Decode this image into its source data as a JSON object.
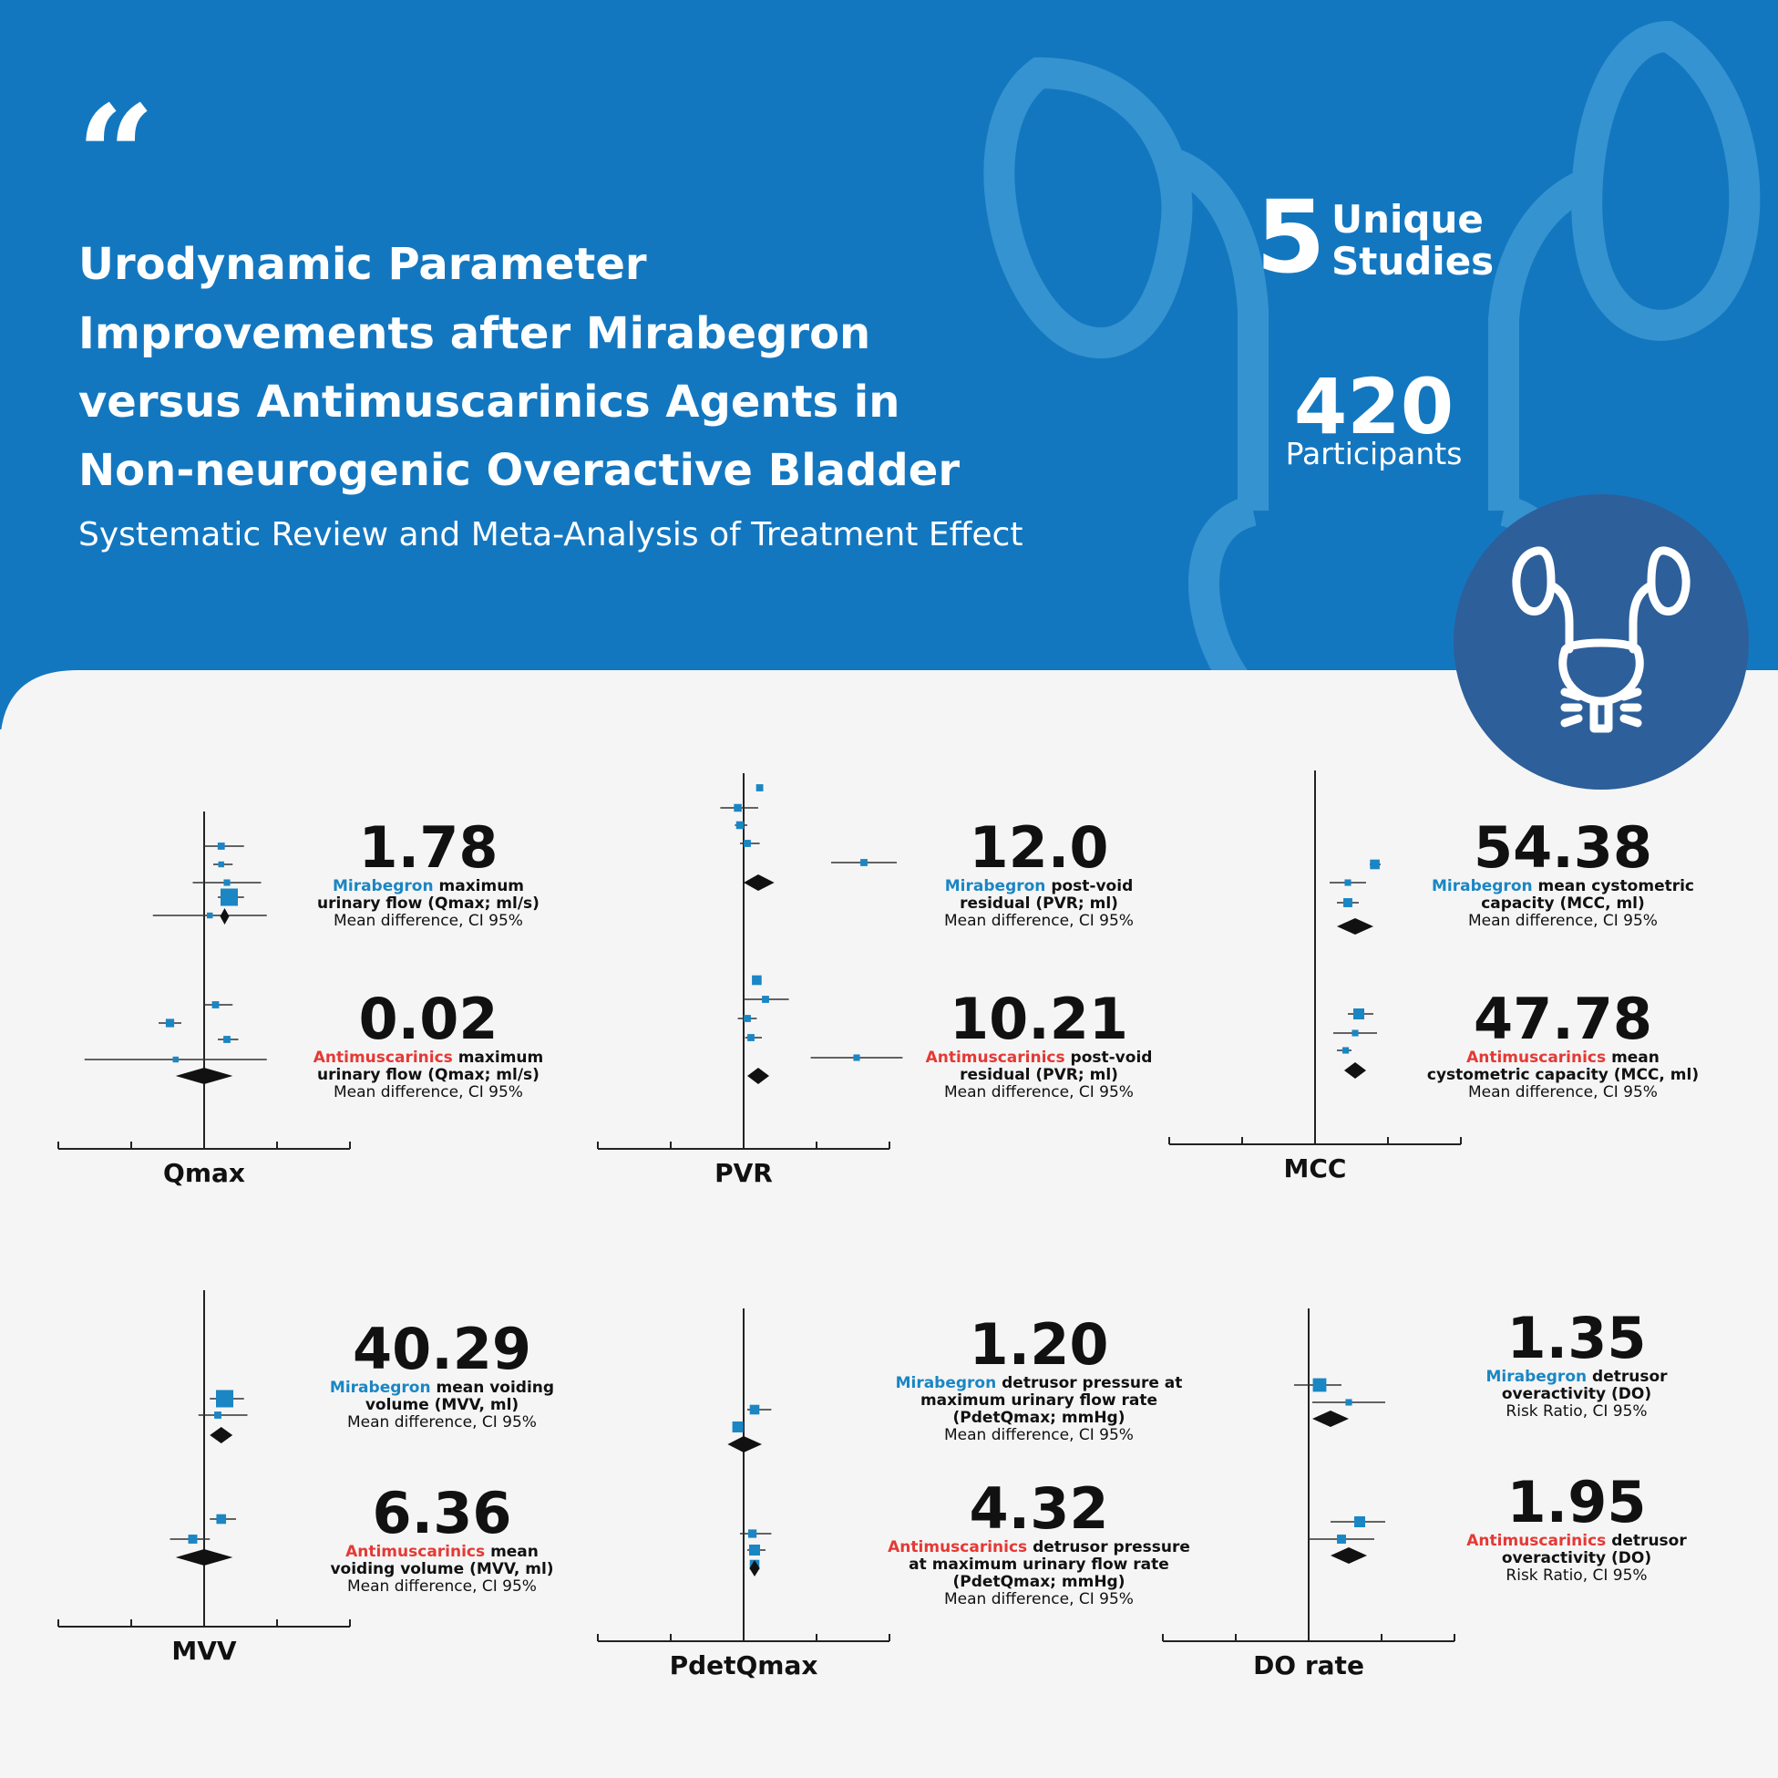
{
  "header": {
    "title_lines": [
      "Urodynamic Parameter",
      "Improvements after Mirabegron",
      "versus Antimuscarinics Agents in",
      "Non-neurogenic Overactive Bladder"
    ],
    "subtitle": "Systematic Review and Meta-Analysis of Treatment Effect",
    "quote_mark": "“"
  },
  "stats": {
    "studies_count": "5",
    "studies_label_l1": "Unique",
    "studies_label_l2": "Studies",
    "participants_count": "420",
    "participants_label": "Participants"
  },
  "icons": {
    "badge": "kidneys-bladder-icon",
    "background": "urinary-tract-outline-icon"
  },
  "colors": {
    "header_blue": "#1377c0",
    "badge_blue": "#2d5f9a",
    "mirabegron": "#1a86c4",
    "antimuscarinics": "#e53935",
    "marker": "#1a86c4"
  },
  "chart_data": [
    {
      "type": "forest",
      "axis_label": "Qmax",
      "groups": [
        {
          "drug": "Mirabegron",
          "estimate": "1.78",
          "description": "maximum urinary flow (Qmax; ml/s)",
          "measure": "Mean difference, CI 95%",
          "studies": [
            {
              "est": 0.15,
              "lo": 0.0,
              "hi": 0.35,
              "w": 0.2
            },
            {
              "est": 0.15,
              "lo": 0.08,
              "hi": 0.25,
              "w": 0.1
            },
            {
              "est": 0.2,
              "lo": -0.1,
              "hi": 0.5,
              "w": 0.15
            },
            {
              "est": 0.22,
              "lo": 0.12,
              "hi": 0.35,
              "w": 1.0
            },
            {
              "est": 0.05,
              "lo": -0.45,
              "hi": 0.55,
              "w": 0.1
            }
          ],
          "pooled": {
            "est": 0.18,
            "lo": 0.14,
            "hi": 0.22
          }
        },
        {
          "drug": "Antimuscarinics",
          "estimate": "0.02",
          "description": "maximum urinary flow (Qmax; ml/s)",
          "measure": "Mean difference, CI 95%",
          "studies": [
            {
              "est": 0.1,
              "lo": 0.0,
              "hi": 0.25,
              "w": 0.2
            },
            {
              "est": -0.3,
              "lo": -0.4,
              "hi": -0.2,
              "w": 0.3
            },
            {
              "est": 0.2,
              "lo": 0.12,
              "hi": 0.3,
              "w": 0.2
            },
            {
              "est": -0.25,
              "lo": -1.05,
              "hi": 0.55,
              "w": 0.1
            }
          ],
          "pooled": {
            "est": 0.0,
            "lo": -0.25,
            "hi": 0.25
          }
        }
      ]
    },
    {
      "type": "forest",
      "axis_label": "PVR",
      "groups": [
        {
          "drug": "Mirabegron",
          "estimate": "12.0",
          "description": "post-void residual (PVR; ml)",
          "measure": "Mean difference, CI 95%",
          "studies": [
            {
              "est": 0.22,
              "lo": 0.22,
              "hi": 0.22,
              "w": 0.2
            },
            {
              "est": -0.08,
              "lo": -0.32,
              "hi": 0.2,
              "w": 0.25
            },
            {
              "est": -0.05,
              "lo": -0.12,
              "hi": 0.05,
              "w": 0.25
            },
            {
              "est": 0.05,
              "lo": -0.05,
              "hi": 0.22,
              "w": 0.2
            },
            {
              "est": 1.65,
              "lo": 1.2,
              "hi": 2.1,
              "w": 0.2
            }
          ],
          "pooled": {
            "est": 0.2,
            "lo": 0.0,
            "hi": 0.42
          }
        },
        {
          "drug": "Antimuscarinics",
          "estimate": "10.21",
          "description": "post-void residual (PVR; ml)",
          "measure": "Mean difference, CI 95%",
          "studies": [
            {
              "est": 0.18,
              "lo": 0.18,
              "hi": 0.18,
              "w": 0.4
            },
            {
              "est": 0.3,
              "lo": 0.0,
              "hi": 0.62,
              "w": 0.2
            },
            {
              "est": 0.05,
              "lo": -0.08,
              "hi": 0.18,
              "w": 0.2
            },
            {
              "est": 0.1,
              "lo": 0.02,
              "hi": 0.25,
              "w": 0.2
            },
            {
              "est": 1.55,
              "lo": 0.92,
              "hi": 2.18,
              "w": 0.15
            }
          ],
          "pooled": {
            "est": 0.2,
            "lo": 0.05,
            "hi": 0.35
          }
        }
      ]
    },
    {
      "type": "forest",
      "axis_label": "MCC",
      "groups": [
        {
          "drug": "Mirabegron",
          "estimate": "54.38",
          "description": "mean cystometric capacity (MCC, ml)",
          "measure": "Mean difference, CI 95%",
          "studies": [
            {
              "est": 0.82,
              "lo": 0.75,
              "hi": 0.9,
              "w": 0.4
            },
            {
              "est": 0.45,
              "lo": 0.2,
              "hi": 0.7,
              "w": 0.15
            },
            {
              "est": 0.45,
              "lo": 0.3,
              "hi": 0.6,
              "w": 0.35
            }
          ],
          "pooled": {
            "est": 0.55,
            "lo": 0.3,
            "hi": 0.8
          }
        },
        {
          "drug": "Antimuscarinics",
          "estimate": "47.78",
          "description": "mean cystometric capacity (MCC, ml)",
          "measure": "Mean difference, CI 95%",
          "studies": [
            {
              "est": 0.6,
              "lo": 0.45,
              "hi": 0.8,
              "w": 0.5
            },
            {
              "est": 0.55,
              "lo": 0.25,
              "hi": 0.85,
              "w": 0.15
            },
            {
              "est": 0.42,
              "lo": 0.3,
              "hi": 0.5,
              "w": 0.15
            }
          ],
          "pooled": {
            "est": 0.55,
            "lo": 0.4,
            "hi": 0.7
          }
        }
      ]
    },
    {
      "type": "forest",
      "axis_label": "MVV",
      "groups": [
        {
          "drug": "Mirabegron",
          "estimate": "40.29",
          "description": "mean voiding volume (MVV, ml)",
          "measure": "Mean difference, CI 95%",
          "studies": [
            {
              "est": 0.18,
              "lo": 0.05,
              "hi": 0.35,
              "w": 1.0
            },
            {
              "est": 0.12,
              "lo": -0.05,
              "hi": 0.38,
              "w": 0.2
            }
          ],
          "pooled": {
            "est": 0.15,
            "lo": 0.05,
            "hi": 0.25
          }
        },
        {
          "drug": "Antimuscarinics",
          "estimate": "6.36",
          "description": "mean voiding volume (MVV, ml)",
          "measure": "Mean difference, CI 95%",
          "studies": [
            {
              "est": 0.15,
              "lo": 0.05,
              "hi": 0.28,
              "w": 0.4
            },
            {
              "est": -0.1,
              "lo": -0.3,
              "hi": 0.05,
              "w": 0.35
            }
          ],
          "pooled": {
            "est": 0.0,
            "lo": -0.25,
            "hi": 0.25
          }
        }
      ]
    },
    {
      "type": "forest",
      "axis_label": "PdetQmax",
      "groups": [
        {
          "drug": "Mirabegron",
          "estimate": "1.20",
          "description": "detrusor pressure at maximum urinary flow rate (PdetQmax; mmHg)",
          "measure": "Mean difference, CI 95%",
          "studies": [
            {
              "est": 0.15,
              "lo": 0.05,
              "hi": 0.38,
              "w": 0.4
            },
            {
              "est": -0.08,
              "lo": -0.15,
              "hi": 0.0,
              "w": 0.5
            }
          ],
          "pooled": {
            "est": 0.0,
            "lo": -0.22,
            "hi": 0.25
          }
        },
        {
          "drug": "Antimuscarinics",
          "estimate": "4.32",
          "description": "detrusor pressure at maximum urinary flow rate (PdetQmax; mmHg)",
          "measure": "Mean difference, CI 95%",
          "studies": [
            {
              "est": 0.12,
              "lo": -0.05,
              "hi": 0.38,
              "w": 0.3
            },
            {
              "est": 0.15,
              "lo": 0.05,
              "hi": 0.3,
              "w": 0.5
            },
            {
              "est": 0.15,
              "lo": 0.1,
              "hi": 0.2,
              "w": 0.4
            }
          ],
          "pooled": {
            "est": 0.15,
            "lo": 0.08,
            "hi": 0.22
          }
        }
      ]
    },
    {
      "type": "forest",
      "axis_label": "DO rate",
      "groups": [
        {
          "drug": "Mirabegron",
          "estimate": "1.35",
          "description": "detrusor overactivity (DO)",
          "measure": "Risk Ratio, CI 95%",
          "studies": [
            {
              "est": 0.15,
              "lo": -0.2,
              "hi": 0.45,
              "w": 0.7
            },
            {
              "est": 0.55,
              "lo": 0.05,
              "hi": 1.05,
              "w": 0.15
            }
          ],
          "pooled": {
            "est": 0.3,
            "lo": 0.05,
            "hi": 0.55
          }
        },
        {
          "drug": "Antimuscarinics",
          "estimate": "1.95",
          "description": "detrusor overactivity (DO)",
          "measure": "Risk Ratio, CI 95%",
          "studies": [
            {
              "est": 0.7,
              "lo": 0.3,
              "hi": 1.05,
              "w": 0.5
            },
            {
              "est": 0.45,
              "lo": 0.0,
              "hi": 0.9,
              "w": 0.35
            }
          ],
          "pooled": {
            "est": 0.55,
            "lo": 0.3,
            "hi": 0.8
          }
        }
      ]
    }
  ]
}
